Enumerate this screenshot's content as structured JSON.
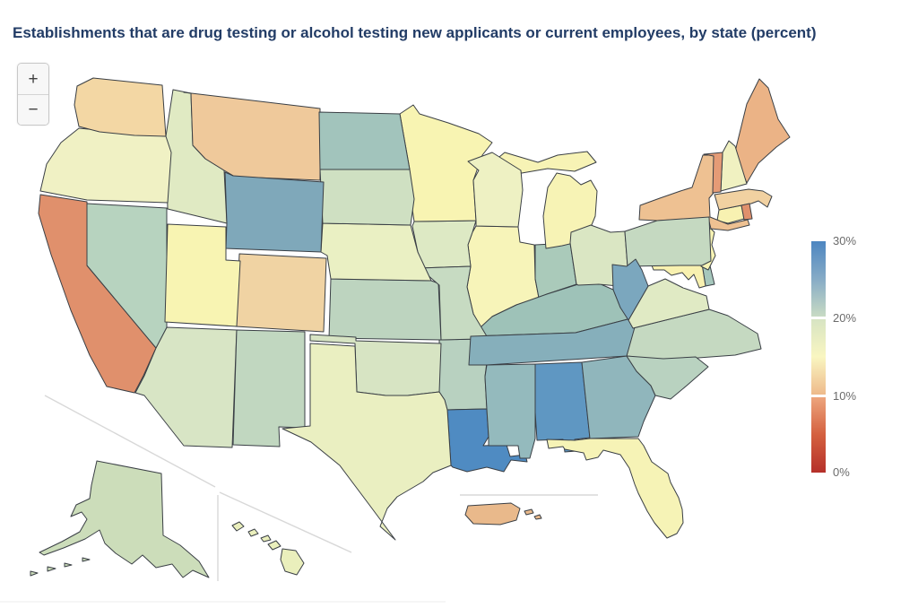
{
  "title": "Establishments that are drug testing or alcohol testing new applicants or current employees, by state (percent)",
  "controls": {
    "zoom_in": "+",
    "zoom_out": "−"
  },
  "colors": {
    "title": "#223c66",
    "state_border": "#3a3f45",
    "background": "#ffffff",
    "inset_separator": "#d8d8d8"
  },
  "legend": {
    "ticks": [
      "30%",
      "20%",
      "10%",
      "0%"
    ],
    "segments": [
      {
        "range": "20-30%",
        "stops": [
          "#c8dbc4",
          "#86abc6",
          "#4d86c1"
        ]
      },
      {
        "range": "10-20%",
        "stops": [
          "#eeba8b",
          "#f9f6c1",
          "#d7e4c3"
        ]
      },
      {
        "range": "0-10%",
        "stops": [
          "#b5302a",
          "#d4603f",
          "#eda57d"
        ]
      }
    ]
  },
  "chart_data": {
    "type": "choropleth",
    "title": "Establishments that are drug testing or alcohol testing new applicants or current employees, by state (percent)",
    "unit": "percent",
    "scale": {
      "min": 0,
      "max": 30,
      "ticks": [
        "0%",
        "10%",
        "20%",
        "30%"
      ],
      "colormap": "diverging red (0%) through yellow (15%) to blue (30%)",
      "legend_position": "right"
    },
    "regions": [
      {
        "abbr": "AL",
        "name": "Alabama",
        "estimated_percent": 28,
        "color": "#5f97c2"
      },
      {
        "abbr": "AK",
        "name": "Alaska",
        "estimated_percent": 19,
        "color": "#ccddba"
      },
      {
        "abbr": "AZ",
        "name": "Arizona",
        "estimated_percent": 18,
        "color": "#d8e5c5"
      },
      {
        "abbr": "AR",
        "name": "Arkansas",
        "estimated_percent": 21,
        "color": "#b8d1c0"
      },
      {
        "abbr": "CA",
        "name": "California",
        "estimated_percent": 8,
        "color": "#e0906c"
      },
      {
        "abbr": "CO",
        "name": "Colorado",
        "estimated_percent": 12,
        "color": "#f0d3a3"
      },
      {
        "abbr": "CT",
        "name": "Connecticut",
        "estimated_percent": 14,
        "color": "#f8f1b1"
      },
      {
        "abbr": "DE",
        "name": "Delaware",
        "estimated_percent": 22,
        "color": "#a6c7bc"
      },
      {
        "abbr": "DC",
        "name": "District of Columbia",
        "estimated_percent": 11,
        "color": "#ebb386"
      },
      {
        "abbr": "FL",
        "name": "Florida",
        "estimated_percent": 15,
        "color": "#f6f3b6"
      },
      {
        "abbr": "GA",
        "name": "Georgia",
        "estimated_percent": 24,
        "color": "#90b6bc"
      },
      {
        "abbr": "HI",
        "name": "Hawaii",
        "estimated_percent": 16,
        "color": "#eaefbc"
      },
      {
        "abbr": "ID",
        "name": "Idaho",
        "estimated_percent": 18,
        "color": "#e0eac3"
      },
      {
        "abbr": "IL",
        "name": "Illinois",
        "estimated_percent": 15,
        "color": "#f7f4b9"
      },
      {
        "abbr": "IN",
        "name": "Indiana",
        "estimated_percent": 22,
        "color": "#aacaba"
      },
      {
        "abbr": "IA",
        "name": "Iowa",
        "estimated_percent": 18,
        "color": "#dde9c4"
      },
      {
        "abbr": "KS",
        "name": "Kansas",
        "estimated_percent": 21,
        "color": "#bdd4bf"
      },
      {
        "abbr": "KY",
        "name": "Kentucky",
        "estimated_percent": 23,
        "color": "#9ec2b8"
      },
      {
        "abbr": "LA",
        "name": "Louisiana",
        "estimated_percent": 29,
        "color": "#4f8bc2"
      },
      {
        "abbr": "ME",
        "name": "Maine",
        "estimated_percent": 11,
        "color": "#ebb386"
      },
      {
        "abbr": "MD",
        "name": "Maryland",
        "estimated_percent": 14,
        "color": "#f8f1b0"
      },
      {
        "abbr": "MA",
        "name": "Massachusetts",
        "estimated_percent": 13,
        "color": "#f1d1a1"
      },
      {
        "abbr": "MI",
        "name": "Michigan",
        "estimated_percent": 15,
        "color": "#f7f3b5"
      },
      {
        "abbr": "MN",
        "name": "Minnesota",
        "estimated_percent": 15,
        "color": "#f8f4b2"
      },
      {
        "abbr": "MS",
        "name": "Mississippi",
        "estimated_percent": 24,
        "color": "#94babd"
      },
      {
        "abbr": "MO",
        "name": "Missouri",
        "estimated_percent": 20,
        "color": "#c7dbc2"
      },
      {
        "abbr": "MT",
        "name": "Montana",
        "estimated_percent": 12,
        "color": "#efc99b"
      },
      {
        "abbr": "NE",
        "name": "Nebraska",
        "estimated_percent": 16,
        "color": "#eaf0c3"
      },
      {
        "abbr": "NV",
        "name": "Nevada",
        "estimated_percent": 21,
        "color": "#b7d3bf"
      },
      {
        "abbr": "NH",
        "name": "New Hampshire",
        "estimated_percent": 16,
        "color": "#f0f1c1"
      },
      {
        "abbr": "NJ",
        "name": "New Jersey",
        "estimated_percent": 15,
        "color": "#f8f4b5"
      },
      {
        "abbr": "NM",
        "name": "New Mexico",
        "estimated_percent": 20,
        "color": "#c1d7c0"
      },
      {
        "abbr": "NY",
        "name": "New York",
        "estimated_percent": 12,
        "color": "#eec192"
      },
      {
        "abbr": "NC",
        "name": "North Carolina",
        "estimated_percent": 20,
        "color": "#c5d9c1"
      },
      {
        "abbr": "ND",
        "name": "North Dakota",
        "estimated_percent": 23,
        "color": "#a2c4bc"
      },
      {
        "abbr": "OH",
        "name": "Ohio",
        "estimated_percent": 18,
        "color": "#dae6c3"
      },
      {
        "abbr": "OK",
        "name": "Oklahoma",
        "estimated_percent": 18,
        "color": "#d7e4c3"
      },
      {
        "abbr": "OR",
        "name": "Oregon",
        "estimated_percent": 16,
        "color": "#f0f1c4"
      },
      {
        "abbr": "PA",
        "name": "Pennsylvania",
        "estimated_percent": 20,
        "color": "#c5d9c1"
      },
      {
        "abbr": "PR",
        "name": "Puerto Rico",
        "estimated_percent": 11,
        "color": "#e9b98b"
      },
      {
        "abbr": "RI",
        "name": "Rhode Island",
        "estimated_percent": 8,
        "color": "#e0906c"
      },
      {
        "abbr": "SC",
        "name": "South Carolina",
        "estimated_percent": 21,
        "color": "#b9d2c0"
      },
      {
        "abbr": "SD",
        "name": "South Dakota",
        "estimated_percent": 19,
        "color": "#cfe0c2"
      },
      {
        "abbr": "TN",
        "name": "Tennessee",
        "estimated_percent": 25,
        "color": "#86afbb"
      },
      {
        "abbr": "TX",
        "name": "Texas",
        "estimated_percent": 16,
        "color": "#eaefc1"
      },
      {
        "abbr": "UT",
        "name": "Utah",
        "estimated_percent": 15,
        "color": "#f8f4b2"
      },
      {
        "abbr": "VT",
        "name": "Vermont",
        "estimated_percent": 10,
        "color": "#e59b76"
      },
      {
        "abbr": "VA",
        "name": "Virginia",
        "estimated_percent": 18,
        "color": "#e0eac4"
      },
      {
        "abbr": "WA",
        "name": "Washington",
        "estimated_percent": 13,
        "color": "#f3d7a4"
      },
      {
        "abbr": "WV",
        "name": "West Virginia",
        "estimated_percent": 26,
        "color": "#7ba7be"
      },
      {
        "abbr": "WI",
        "name": "Wisconsin",
        "estimated_percent": 16,
        "color": "#eef1c3"
      },
      {
        "abbr": "WY",
        "name": "Wyoming",
        "estimated_percent": 26,
        "color": "#7fa8ba"
      }
    ]
  }
}
